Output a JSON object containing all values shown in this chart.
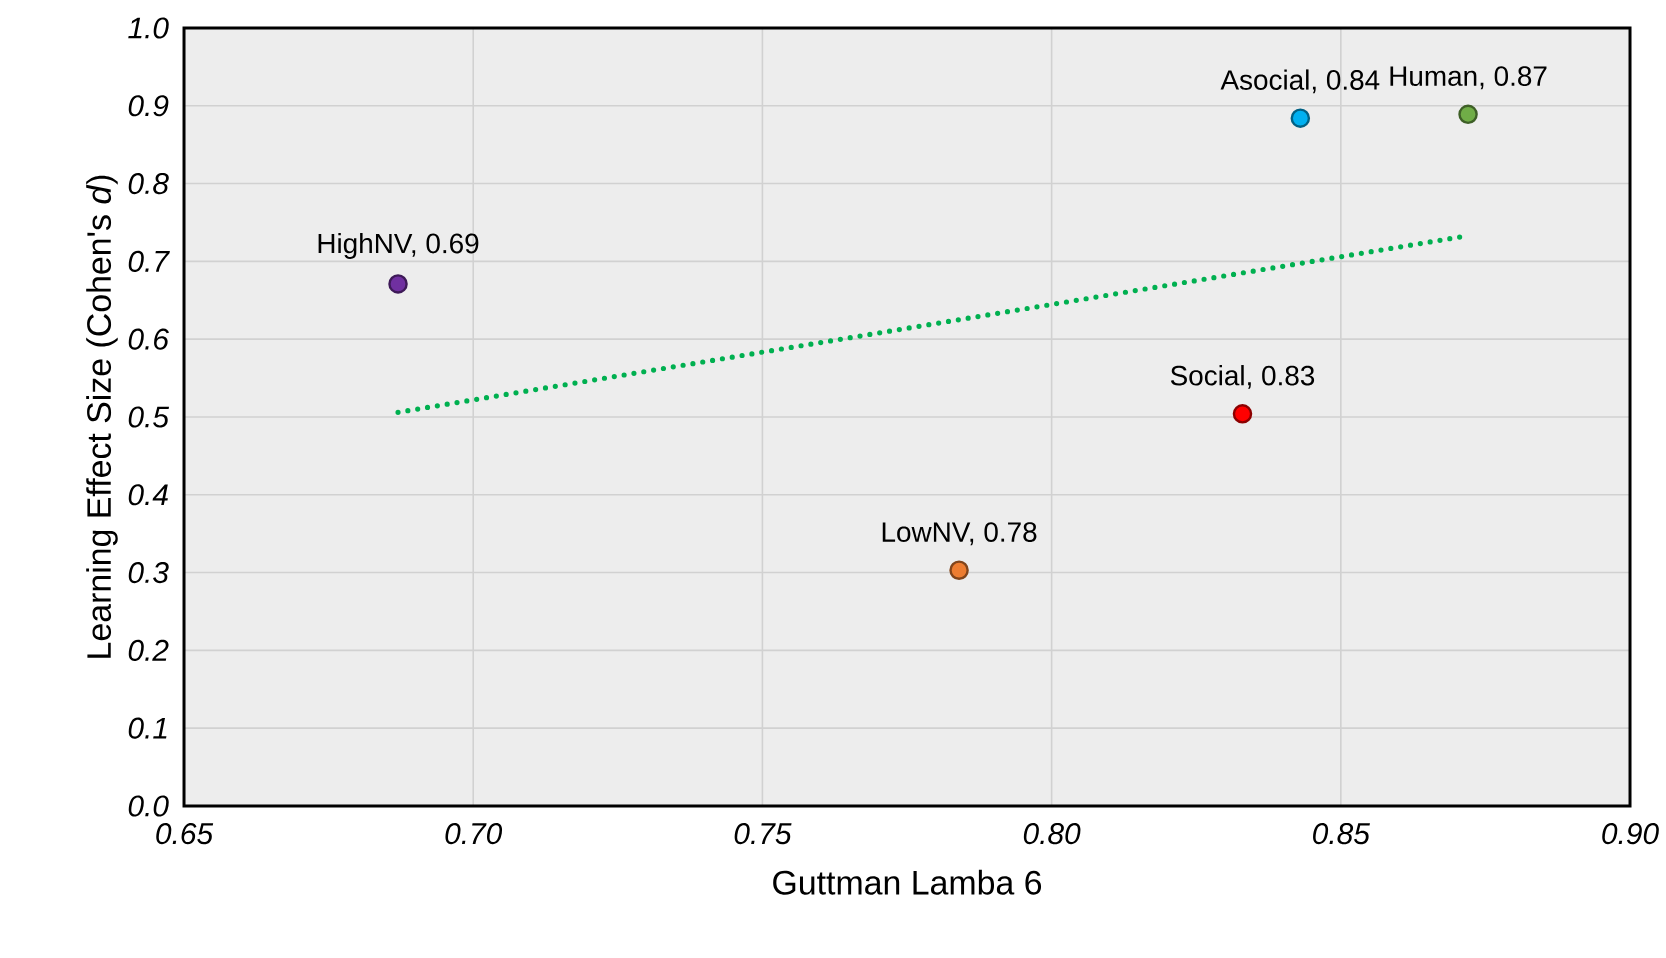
{
  "chart_data": {
    "type": "scatter",
    "xlabel": "Guttman Lamba 6",
    "ylabel": "Learning Effect Size (Cohen's *d*)",
    "xlim": [
      0.65,
      0.9
    ],
    "xticks": [
      0.65,
      {
        "value": 0.7,
        "label": "0.70"
      },
      0.75,
      {
        "value": 0.8,
        "label": "0.80"
      },
      0.85,
      {
        "value": 0.9,
        "label": "0.90"
      }
    ],
    "ylim": [
      0,
      1
    ],
    "yticks": [
      {
        "value": 0,
        "label": "0.0"
      },
      0.1,
      0.2,
      0.3,
      0.4,
      0.5,
      0.6,
      0.7,
      0.8,
      0.9,
      {
        "value": 1,
        "label": "1.0"
      }
    ],
    "grid": true,
    "series": [
      {
        "marker": "circle",
        "color": "#7030a0",
        "x": [
          0.687
        ],
        "values": [
          0.671
        ]
      },
      {
        "marker": "circle",
        "color": "#ed7d31",
        "x": [
          0.784
        ],
        "values": [
          0.303
        ]
      },
      {
        "marker": "circle",
        "color": "#ff0000",
        "x": [
          0.833
        ],
        "values": [
          0.504
        ]
      },
      {
        "marker": "circle",
        "color": "#00b0f0",
        "x": [
          0.843
        ],
        "values": [
          0.884
        ]
      },
      {
        "marker": "circle",
        "color": "#70ad47",
        "x": [
          0.872
        ],
        "values": [
          0.889
        ]
      },
      {
        "type": "line",
        "marker": "none",
        "line_style": "dotted",
        "color": "#00b050",
        "x": [
          0.687,
          0.872
        ],
        "values": [
          0.506,
          0.733
        ]
      }
    ],
    "annotations": [
      {
        "text": "HighNV, 0.69",
        "x": 0.687,
        "y": 0.671
      },
      {
        "text": "LowNV, 0.78",
        "x": 0.784,
        "y": 0.303
      },
      {
        "text": "Social, 0.83",
        "x": 0.833,
        "y": 0.504
      },
      {
        "text": "Asocial, 0.84",
        "x": 0.843,
        "y": 0.884
      },
      {
        "text": "Human, 0.87",
        "x": 0.872,
        "y": 0.889
      }
    ]
  }
}
